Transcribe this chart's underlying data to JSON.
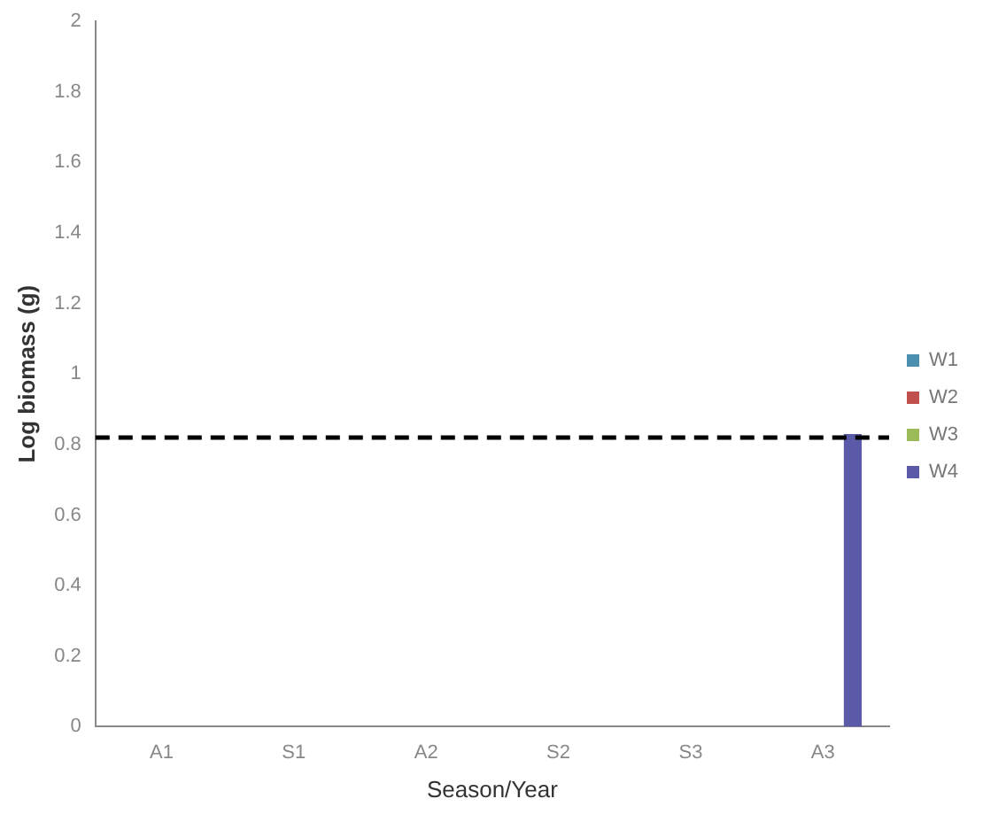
{
  "chart_data": {
    "type": "bar",
    "xlabel": "Season/Year",
    "ylabel": "Log biomass (g)",
    "categories": [
      "A1",
      "S1",
      "A2",
      "S2",
      "S3",
      "A3"
    ],
    "series": [
      {
        "name": "W1",
        "color": "#4a8fb0",
        "values": [
          0,
          0,
          0,
          0,
          0,
          0
        ]
      },
      {
        "name": "W2",
        "color": "#c0504d",
        "values": [
          0,
          0,
          0,
          0,
          0,
          0
        ]
      },
      {
        "name": "W3",
        "color": "#9bbb59",
        "values": [
          0,
          0,
          0,
          0,
          0,
          0
        ]
      },
      {
        "name": "W4",
        "color": "#5a5aa8",
        "values": [
          0,
          0,
          0,
          0,
          0,
          0.83
        ]
      }
    ],
    "ylim": [
      0,
      2
    ],
    "yticks": [
      0,
      0.2,
      0.4,
      0.6,
      0.8,
      1,
      1.2,
      1.4,
      1.6,
      1.8,
      2
    ],
    "ref_lines": [
      {
        "axis": "y",
        "value": 0.82,
        "color": "#000000",
        "line_style": "dashed"
      }
    ],
    "grid": false,
    "legend": "right"
  }
}
